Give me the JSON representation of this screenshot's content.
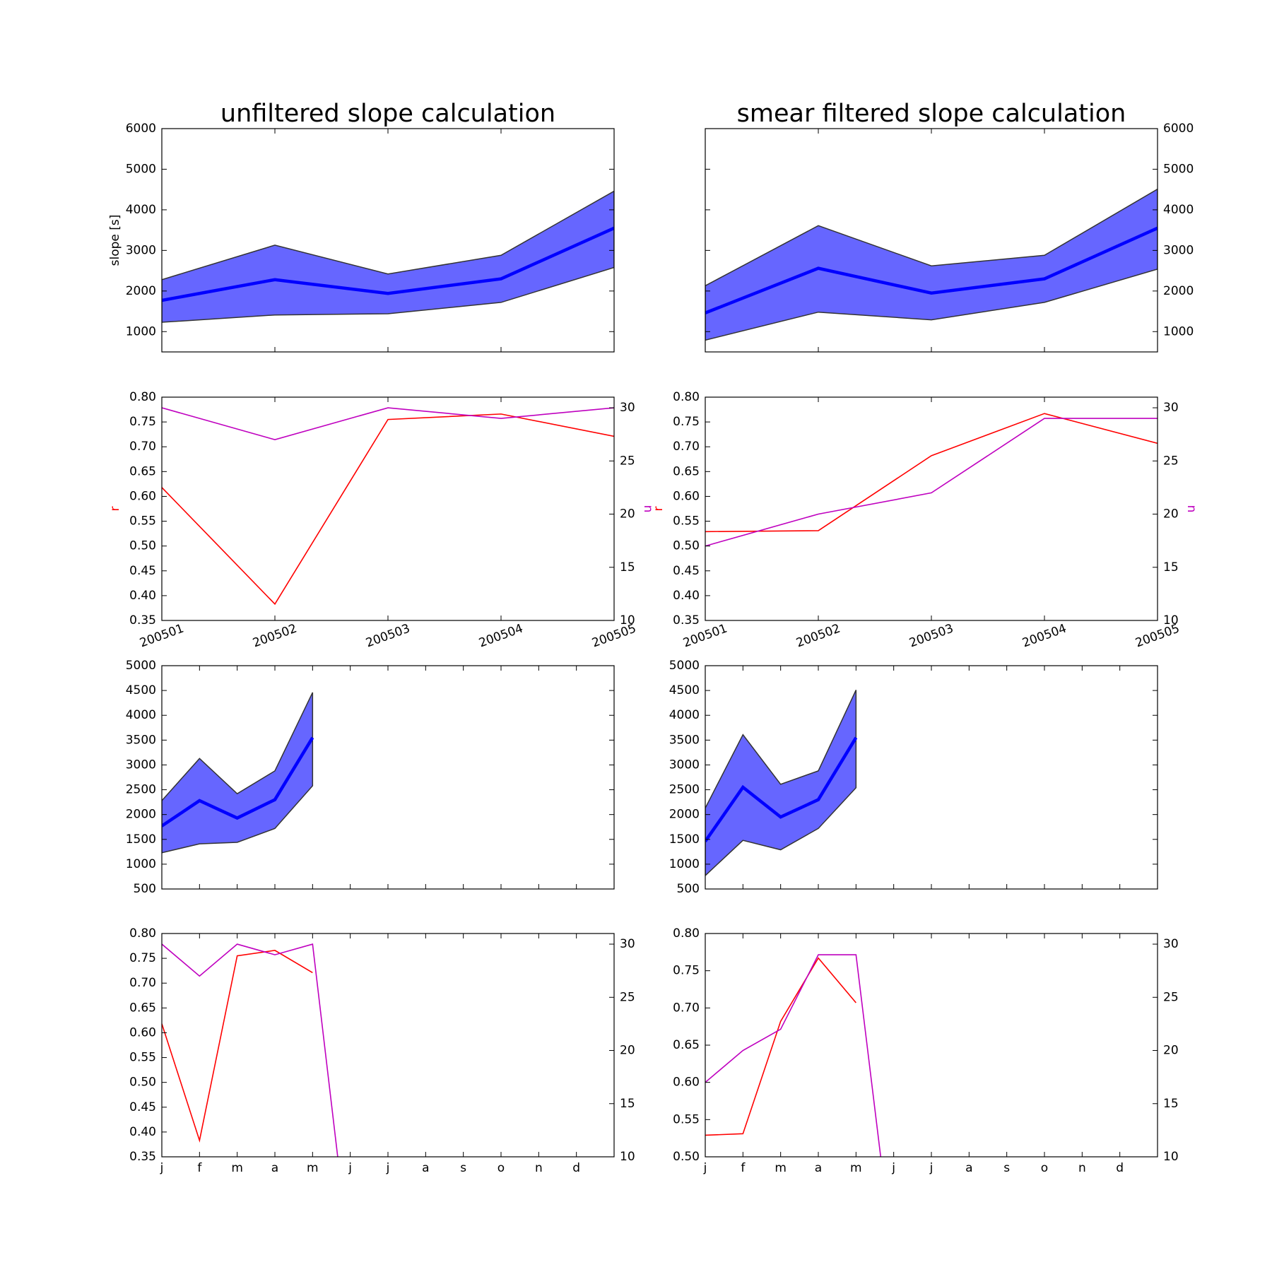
{
  "chart_data": [
    {
      "type": "band",
      "title": "unfiltered slope calculation",
      "ylabel": "slope [s]",
      "values": [
        1770,
        2280,
        1940,
        2300,
        3550
      ],
      "upper": [
        2280,
        3130,
        2420,
        2880,
        4460
      ],
      "lower": [
        1230,
        1410,
        1440,
        1720,
        2580
      ],
      "color": "#0000ff",
      "band_color": "#6666ff",
      "ylim": [
        500,
        6000
      ],
      "yticks": [
        1000,
        2000,
        3000,
        4000,
        5000,
        6000
      ],
      "ytick_side": "left"
    },
    {
      "type": "band",
      "title": "smear filtered slope calculation",
      "values": [
        1460,
        2560,
        1950,
        2300,
        3550
      ],
      "upper": [
        2130,
        3610,
        2620,
        2880,
        4510
      ],
      "lower": [
        790,
        1480,
        1290,
        1720,
        2540
      ],
      "color": "#0000ff",
      "band_color": "#6666ff",
      "ylim": [
        500,
        6000
      ],
      "yticks": [
        1000,
        2000,
        3000,
        4000,
        5000,
        6000
      ],
      "ytick_side": "right"
    },
    {
      "type": "line",
      "categories": [
        "200501",
        "200502",
        "200503",
        "200504",
        "200505"
      ],
      "series": [
        {
          "color": "#ff0000",
          "values": [
            0.618,
            0.383,
            0.755,
            0.766,
            0.721
          ]
        },
        {
          "color": "#bf00bf",
          "values": [
            30,
            27,
            30,
            29,
            30
          ],
          "axis": "y2"
        }
      ],
      "ylabel": "r",
      "y2label": "n",
      "ylim": [
        0.35,
        0.8
      ],
      "yticks": [
        0.35,
        {
          "value": 0.4,
          "label": "0.40"
        },
        0.45,
        {
          "value": 0.5,
          "label": "0.50"
        },
        0.55,
        {
          "value": 0.6,
          "label": "0.60"
        },
        0.65,
        {
          "value": 0.7,
          "label": "0.70"
        },
        0.75,
        {
          "value": 0.8,
          "label": "0.80"
        }
      ],
      "y2lim": [
        10,
        31
      ],
      "y2ticks": [
        10,
        15,
        20,
        25,
        30
      ]
    },
    {
      "type": "line",
      "categories": [
        "200501",
        "200502",
        "200503",
        "200504",
        "200505"
      ],
      "series": [
        {
          "color": "#ff0000",
          "values": [
            0.529,
            0.531,
            0.682,
            0.767,
            0.707
          ]
        },
        {
          "color": "#bf00bf",
          "values": [
            17,
            20,
            22,
            29,
            29
          ],
          "axis": "y2"
        }
      ],
      "ylabel": "r",
      "y2label": "n",
      "ylim": [
        0.35,
        0.8
      ],
      "yticks": [
        0.35,
        {
          "value": 0.4,
          "label": "0.40"
        },
        0.45,
        {
          "value": 0.5,
          "label": "0.50"
        },
        0.55,
        {
          "value": 0.6,
          "label": "0.60"
        },
        0.65,
        {
          "value": 0.7,
          "label": "0.70"
        },
        0.75,
        {
          "value": 0.8,
          "label": "0.80"
        }
      ],
      "y2lim": [
        10,
        31
      ],
      "y2ticks": [
        10,
        15,
        20,
        25,
        30
      ]
    },
    {
      "type": "band",
      "x": [
        1,
        2,
        3,
        4,
        5
      ],
      "xlim": [
        1,
        13
      ],
      "xticks": [
        1,
        2,
        3,
        4,
        5,
        6,
        7,
        8,
        9,
        10,
        11,
        12
      ],
      "values": [
        1770,
        2280,
        1930,
        2300,
        3550
      ],
      "upper": [
        2280,
        3130,
        2420,
        2880,
        4460
      ],
      "lower": [
        1230,
        1410,
        1440,
        1720,
        2580
      ],
      "color": "#0000ff",
      "band_color": "#6666ff",
      "ylim": [
        500,
        5000
      ],
      "yticks": [
        500,
        1000,
        1500,
        2000,
        2500,
        3000,
        3500,
        4000,
        4500,
        5000
      ],
      "ytick_side": "left"
    },
    {
      "type": "band",
      "x": [
        1,
        2,
        3,
        4,
        5
      ],
      "xlim": [
        1,
        13
      ],
      "xticks": [
        1,
        2,
        3,
        4,
        5,
        6,
        7,
        8,
        9,
        10,
        11,
        12
      ],
      "values": [
        1460,
        2550,
        1950,
        2300,
        3550
      ],
      "upper": [
        2130,
        3610,
        2610,
        2880,
        4510
      ],
      "lower": [
        770,
        1480,
        1290,
        1720,
        2540
      ],
      "color": "#0000ff",
      "band_color": "#6666ff",
      "ylim": [
        500,
        5000
      ],
      "yticks": [
        500,
        1000,
        1500,
        2000,
        2500,
        3000,
        3500,
        4000,
        4500,
        5000
      ],
      "ytick_side": "left"
    },
    {
      "type": "line",
      "x": [
        1,
        2,
        3,
        4,
        5,
        6
      ],
      "xlim": [
        1,
        13
      ],
      "xticks": [
        {
          "value": 1,
          "label": "j"
        },
        {
          "value": 2,
          "label": "f"
        },
        {
          "value": 3,
          "label": "m"
        },
        {
          "value": 4,
          "label": "a"
        },
        {
          "value": 5,
          "label": "m"
        },
        {
          "value": 6,
          "label": "j"
        },
        {
          "value": 7,
          "label": "j"
        },
        {
          "value": 8,
          "label": "a"
        },
        {
          "value": 9,
          "label": "s"
        },
        {
          "value": 10,
          "label": "o"
        },
        {
          "value": 11,
          "label": "n"
        },
        {
          "value": 12,
          "label": "d"
        }
      ],
      "series": [
        {
          "color": "#ff0000",
          "values": [
            0.618,
            0.383,
            0.755,
            0.766,
            0.721,
            null
          ]
        },
        {
          "color": "#bf00bf",
          "values": [
            30,
            27,
            30,
            29,
            30,
            0
          ],
          "axis": "y2"
        }
      ],
      "ylim": [
        0.35,
        0.8
      ],
      "yticks": [
        0.35,
        {
          "value": 0.4,
          "label": "0.40"
        },
        0.45,
        {
          "value": 0.5,
          "label": "0.50"
        },
        0.55,
        {
          "value": 0.6,
          "label": "0.60"
        },
        0.65,
        {
          "value": 0.7,
          "label": "0.70"
        },
        0.75,
        {
          "value": 0.8,
          "label": "0.80"
        }
      ],
      "y2lim": [
        10,
        31
      ],
      "y2ticks": [
        10,
        15,
        20,
        25,
        30
      ]
    },
    {
      "type": "line",
      "x": [
        1,
        2,
        3,
        4,
        5,
        6
      ],
      "xlim": [
        1,
        13
      ],
      "xticks": [
        {
          "value": 1,
          "label": "j"
        },
        {
          "value": 2,
          "label": "f"
        },
        {
          "value": 3,
          "label": "m"
        },
        {
          "value": 4,
          "label": "a"
        },
        {
          "value": 5,
          "label": "m"
        },
        {
          "value": 6,
          "label": "j"
        },
        {
          "value": 7,
          "label": "j"
        },
        {
          "value": 8,
          "label": "a"
        },
        {
          "value": 9,
          "label": "s"
        },
        {
          "value": 10,
          "label": "o"
        },
        {
          "value": 11,
          "label": "n"
        },
        {
          "value": 12,
          "label": "d"
        }
      ],
      "series": [
        {
          "color": "#ff0000",
          "values": [
            0.529,
            0.531,
            0.682,
            0.767,
            0.707,
            null
          ]
        },
        {
          "color": "#bf00bf",
          "values": [
            17,
            20,
            22,
            29,
            29,
            0
          ],
          "axis": "y2"
        }
      ],
      "ylim": [
        0.5,
        0.8
      ],
      "yticks": [
        {
          "value": 0.5,
          "label": "0.50"
        },
        0.55,
        {
          "value": 0.6,
          "label": "0.60"
        },
        0.65,
        {
          "value": 0.7,
          "label": "0.70"
        },
        0.75,
        {
          "value": 0.8,
          "label": "0.80"
        }
      ],
      "y2lim": [
        10,
        31
      ],
      "y2ticks": [
        10,
        15,
        20,
        25,
        30
      ]
    }
  ]
}
